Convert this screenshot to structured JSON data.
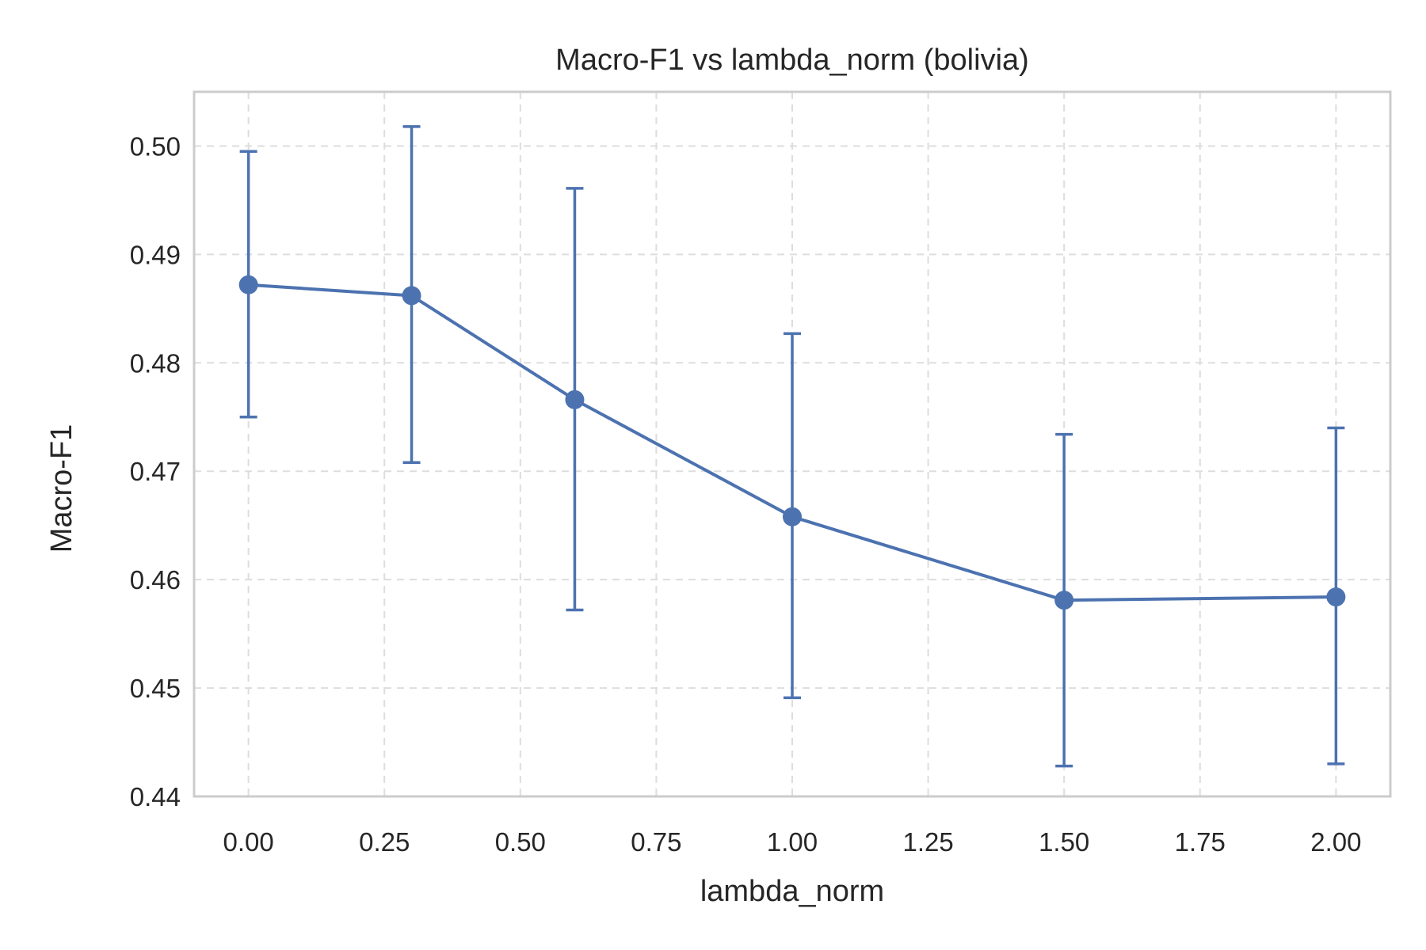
{
  "chart_data": {
    "type": "line",
    "title": "Macro-F1 vs lambda_norm (bolivia)",
    "xlabel": "lambda_norm",
    "ylabel": "Macro-F1",
    "xlim": [
      -0.1,
      2.1
    ],
    "ylim": [
      0.44,
      0.505
    ],
    "x_ticks": [
      0.0,
      0.25,
      0.5,
      0.75,
      1.0,
      1.25,
      1.5,
      1.75,
      2.0
    ],
    "x_tick_labels": [
      "0.00",
      "0.25",
      "0.50",
      "0.75",
      "1.00",
      "1.25",
      "1.50",
      "1.75",
      "2.00"
    ],
    "y_ticks": [
      0.44,
      0.45,
      0.46,
      0.47,
      0.48,
      0.49,
      0.5
    ],
    "y_tick_labels": [
      "0.44",
      "0.45",
      "0.46",
      "0.47",
      "0.48",
      "0.49",
      "0.50"
    ],
    "grid": true,
    "series": [
      {
        "color": "#4c72b0",
        "x": [
          0.0,
          0.3,
          0.6,
          1.0,
          1.5,
          2.0
        ],
        "y": [
          0.4872,
          0.4862,
          0.4766,
          0.4658,
          0.4581,
          0.4584
        ],
        "error_low": [
          0.475,
          0.4708,
          0.4572,
          0.4491,
          0.4428,
          0.443
        ],
        "error_high": [
          0.4995,
          0.5018,
          0.4961,
          0.4827,
          0.4734,
          0.474
        ]
      }
    ]
  }
}
